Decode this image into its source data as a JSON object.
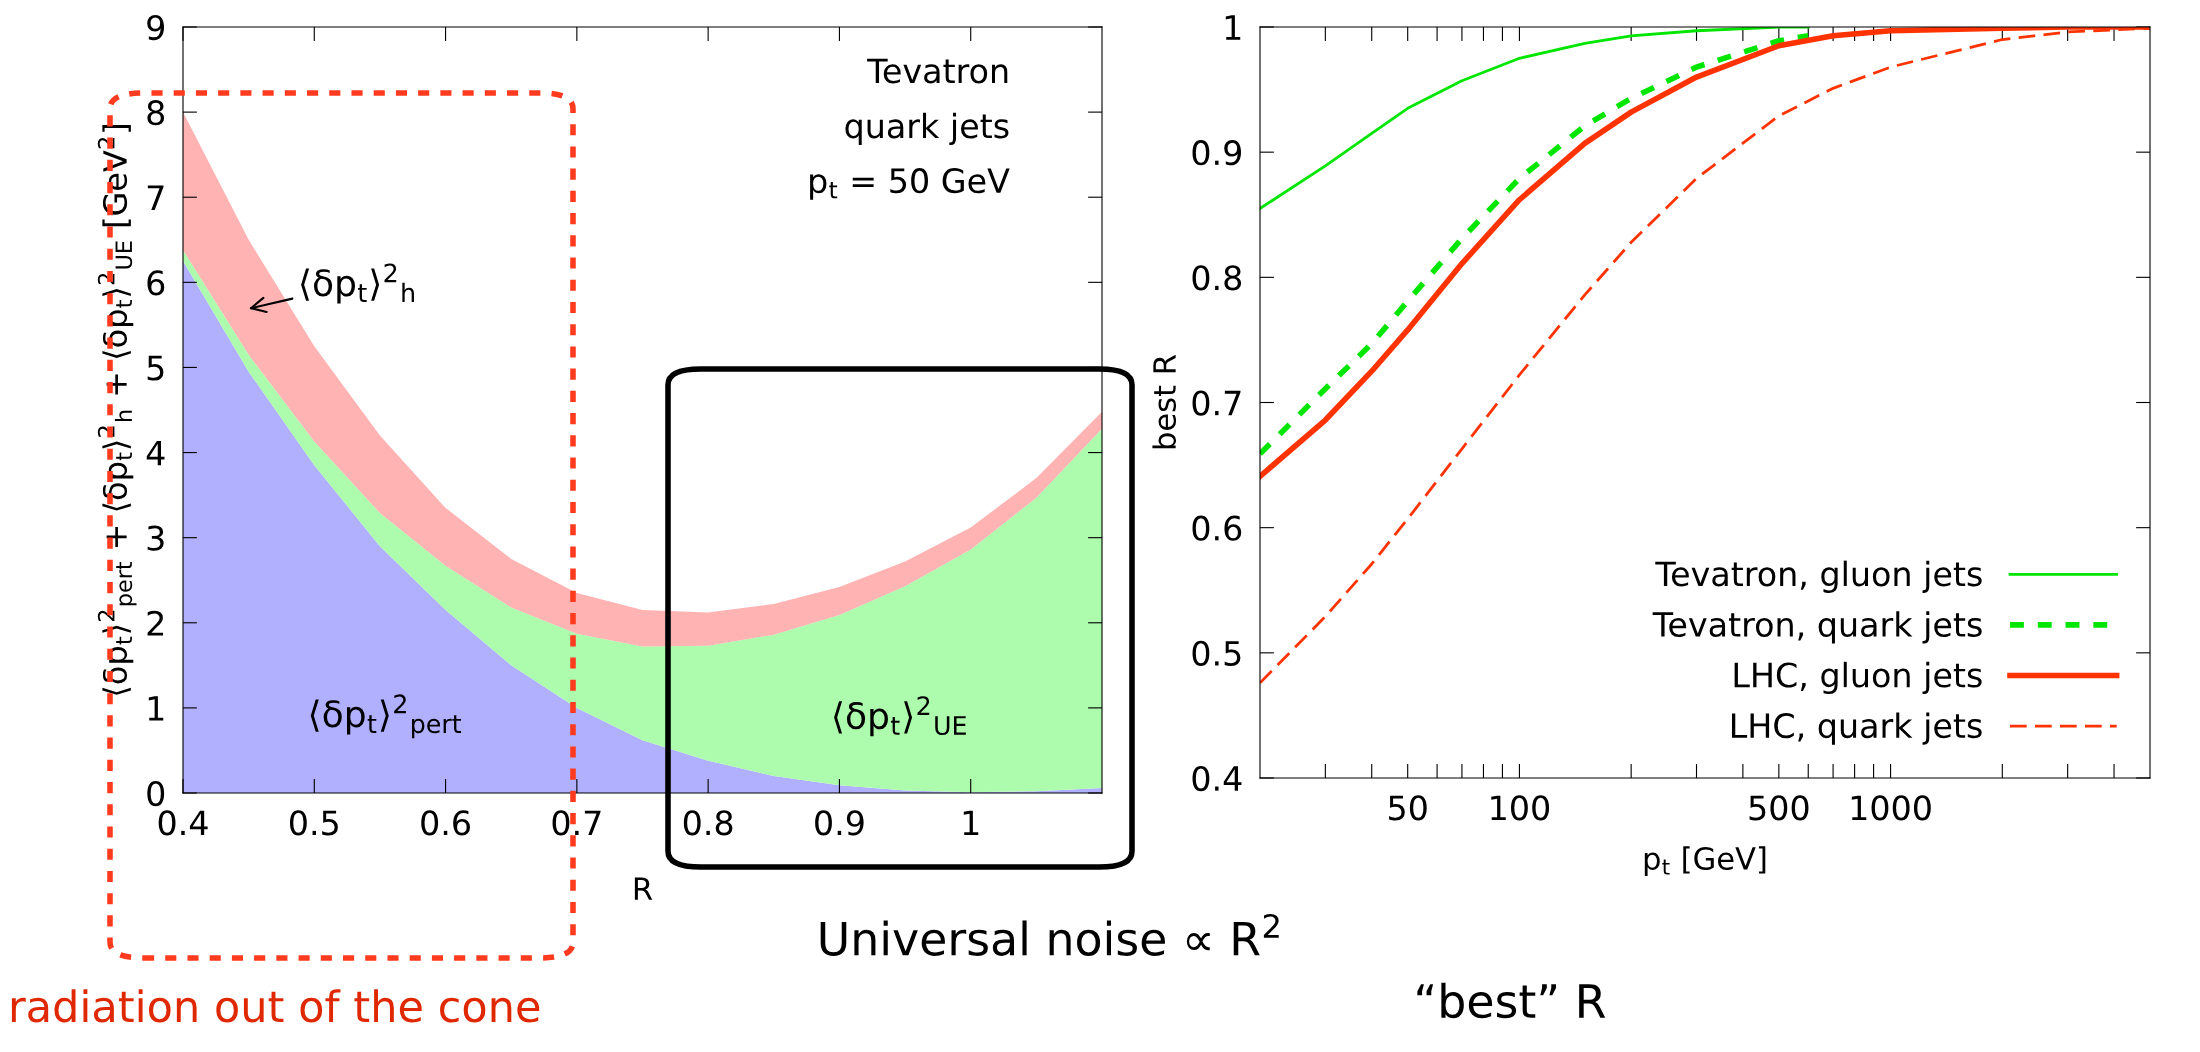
{
  "chart_data": [
    {
      "type": "area",
      "stacked": true,
      "xlabel": "R",
      "ylabel": "⟨δp$_{t}$⟩$^{2}$$_{pert}$ + ⟨δp$_{t}$⟩$^{2}$$_{h}$ + ⟨δp$_{t}$⟩$^{2}$$_{UE}$ [GeV$^{2}$]",
      "x": [
        0.4,
        0.45,
        0.5,
        0.55,
        0.6,
        0.65,
        0.7,
        0.75,
        0.8,
        0.85,
        0.9,
        0.95,
        1.0,
        1.05,
        1.1
      ],
      "series": [
        {
          "name": "⟨δp$_{t}$⟩$^{2}$$_{pert}$",
          "color": "#b0b0ff",
          "values": [
            6.25,
            4.95,
            3.85,
            2.9,
            2.15,
            1.5,
            1.0,
            0.62,
            0.38,
            0.2,
            0.09,
            0.03,
            0.01,
            0.02,
            0.06
          ]
        },
        {
          "name": "⟨δp$_{t}$⟩$^{2}$$_{UE}$",
          "color": "#adfcad",
          "values": [
            0.13,
            0.2,
            0.28,
            0.39,
            0.52,
            0.68,
            0.87,
            1.1,
            1.35,
            1.66,
            2.0,
            2.4,
            2.85,
            3.45,
            4.22
          ]
        },
        {
          "name": "⟨δp$_{t}$⟩$^{2}$$_{h}$",
          "color": "#ffb3b3",
          "values": [
            1.62,
            1.35,
            1.12,
            0.91,
            0.68,
            0.57,
            0.48,
            0.43,
            0.39,
            0.36,
            0.33,
            0.29,
            0.26,
            0.23,
            0.2
          ]
        }
      ],
      "xlim": [
        0.4,
        1.1
      ],
      "xticks": [
        0.4,
        0.5,
        0.6,
        0.7,
        0.8,
        0.9,
        1
      ],
      "ylim": [
        0,
        9
      ],
      "yticks": [
        0,
        1,
        2,
        3,
        4,
        5,
        6,
        7,
        8,
        9
      ],
      "grid": false,
      "legend": false,
      "annotations": [
        "Tevatron\nquark jets\np$_{t}$ = 50 GeV",
        "Universal noise ∝ R$^{2}$",
        "radiation out of the cone"
      ]
    },
    {
      "type": "line",
      "log": "x",
      "xlabel": "p$_{t}$ [GeV]",
      "ylabel": "best R",
      "series": [
        {
          "name": "Tevatron, gluon jets",
          "color": "#00e600",
          "line_style": "solid",
          "x": [
            20,
            30,
            40,
            50,
            70,
            100,
            150,
            200,
            300,
            500,
            600
          ],
          "values": [
            0.855,
            0.889,
            0.915,
            0.935,
            0.957,
            0.975,
            0.987,
            0.993,
            0.997,
            1.0,
            1.0
          ]
        },
        {
          "name": "Tevatron, quark jets",
          "color": "#00e600",
          "line_style": "dotted",
          "x": [
            20,
            30,
            40,
            50,
            70,
            100,
            150,
            200,
            300,
            500,
            600
          ],
          "values": [
            0.659,
            0.711,
            0.747,
            0.781,
            0.831,
            0.879,
            0.921,
            0.943,
            0.968,
            0.989,
            0.993
          ]
        },
        {
          "name": "LHC, gluon jets",
          "color": "#ff3300",
          "line_style": "solid",
          "x": [
            20,
            30,
            40,
            50,
            70,
            100,
            150,
            200,
            300,
            500,
            700,
            1000,
            2000,
            3000,
            5000
          ],
          "values": [
            0.641,
            0.686,
            0.725,
            0.758,
            0.811,
            0.862,
            0.907,
            0.932,
            0.96,
            0.985,
            0.993,
            0.997,
            0.999,
            1.0,
            1.0
          ]
        },
        {
          "name": "LHC, quark jets",
          "color": "#ff3300",
          "line_style": "dashed",
          "x": [
            20,
            30,
            40,
            50,
            70,
            100,
            150,
            200,
            300,
            500,
            700,
            1000,
            2000,
            3000,
            5000
          ],
          "values": [
            0.476,
            0.529,
            0.571,
            0.607,
            0.663,
            0.722,
            0.786,
            0.828,
            0.879,
            0.929,
            0.951,
            0.968,
            0.99,
            0.996,
            0.999
          ]
        }
      ],
      "xlim": [
        20,
        5000
      ],
      "xticks": [
        {
          "value": 30,
          "label": null
        },
        {
          "value": 40,
          "label": null
        },
        50,
        {
          "value": 60,
          "label": null
        },
        {
          "value": 70,
          "label": null
        },
        {
          "value": 80,
          "label": null
        },
        {
          "value": 90,
          "label": null
        },
        100,
        {
          "value": 200,
          "label": null
        },
        {
          "value": 300,
          "label": null
        },
        {
          "value": 400,
          "label": null
        },
        500,
        {
          "value": 600,
          "label": null
        },
        {
          "value": 700,
          "label": null
        },
        {
          "value": 800,
          "label": null
        },
        {
          "value": 900,
          "label": null
        },
        1000,
        {
          "value": 2000,
          "label": null
        },
        {
          "value": 3000,
          "label": null
        },
        {
          "value": 4000,
          "label": null
        }
      ],
      "ylim": [
        0.4,
        1
      ],
      "yticks": [
        0.4,
        0.5,
        0.6,
        0.7,
        0.8,
        0.9,
        1
      ],
      "grid": false,
      "legend": "bottom right",
      "annotations": [
        "“best” R"
      ]
    }
  ]
}
